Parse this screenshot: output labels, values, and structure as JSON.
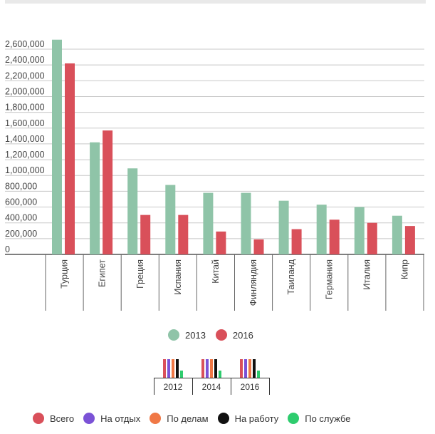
{
  "chart_data": {
    "type": "bar",
    "categories": [
      "Турция",
      "Египет",
      "Греция",
      "Испания",
      "Китай",
      "Финляндия",
      "Таиланд",
      "Германия",
      "Италия",
      "Кипр"
    ],
    "series": [
      {
        "name": "2013",
        "color": "#8fc4a8",
        "values": [
          2720000,
          1420000,
          1090000,
          880000,
          780000,
          780000,
          680000,
          630000,
          600000,
          490000
        ]
      },
      {
        "name": "2016",
        "color": "#d9505a",
        "values": [
          2420000,
          1570000,
          500000,
          500000,
          290000,
          190000,
          320000,
          440000,
          400000,
          360000
        ]
      }
    ],
    "yticks": [
      "0",
      "200,000",
      "400,000",
      "600,000",
      "800,000",
      "1,000,000",
      "1,200,000",
      "1,400,000",
      "1,600,000",
      "1,800,000",
      "2,000,000",
      "2,200,000",
      "2,400,000",
      "2,600,000"
    ],
    "ylim": [
      0,
      2600000
    ],
    "grid": true,
    "legend_position": "bottom"
  },
  "series_legend": [
    {
      "label": "2013",
      "color": "#8fc4a8"
    },
    {
      "label": "2016",
      "color": "#d9505a"
    }
  ],
  "year_switcher": {
    "years": [
      "2012",
      "2014",
      "2016"
    ],
    "bar_colors": [
      "#d9505a",
      "#7b52d6",
      "#f07846",
      "#111111",
      "#2ecc6e"
    ]
  },
  "purpose_legend": [
    {
      "label": "Всего",
      "color": "#d9505a"
    },
    {
      "label": "На отдых",
      "color": "#7b52d6"
    },
    {
      "label": "По делам",
      "color": "#f07846"
    },
    {
      "label": "На работу",
      "color": "#111111"
    },
    {
      "label": "По службе",
      "color": "#2ecc6e"
    }
  ]
}
